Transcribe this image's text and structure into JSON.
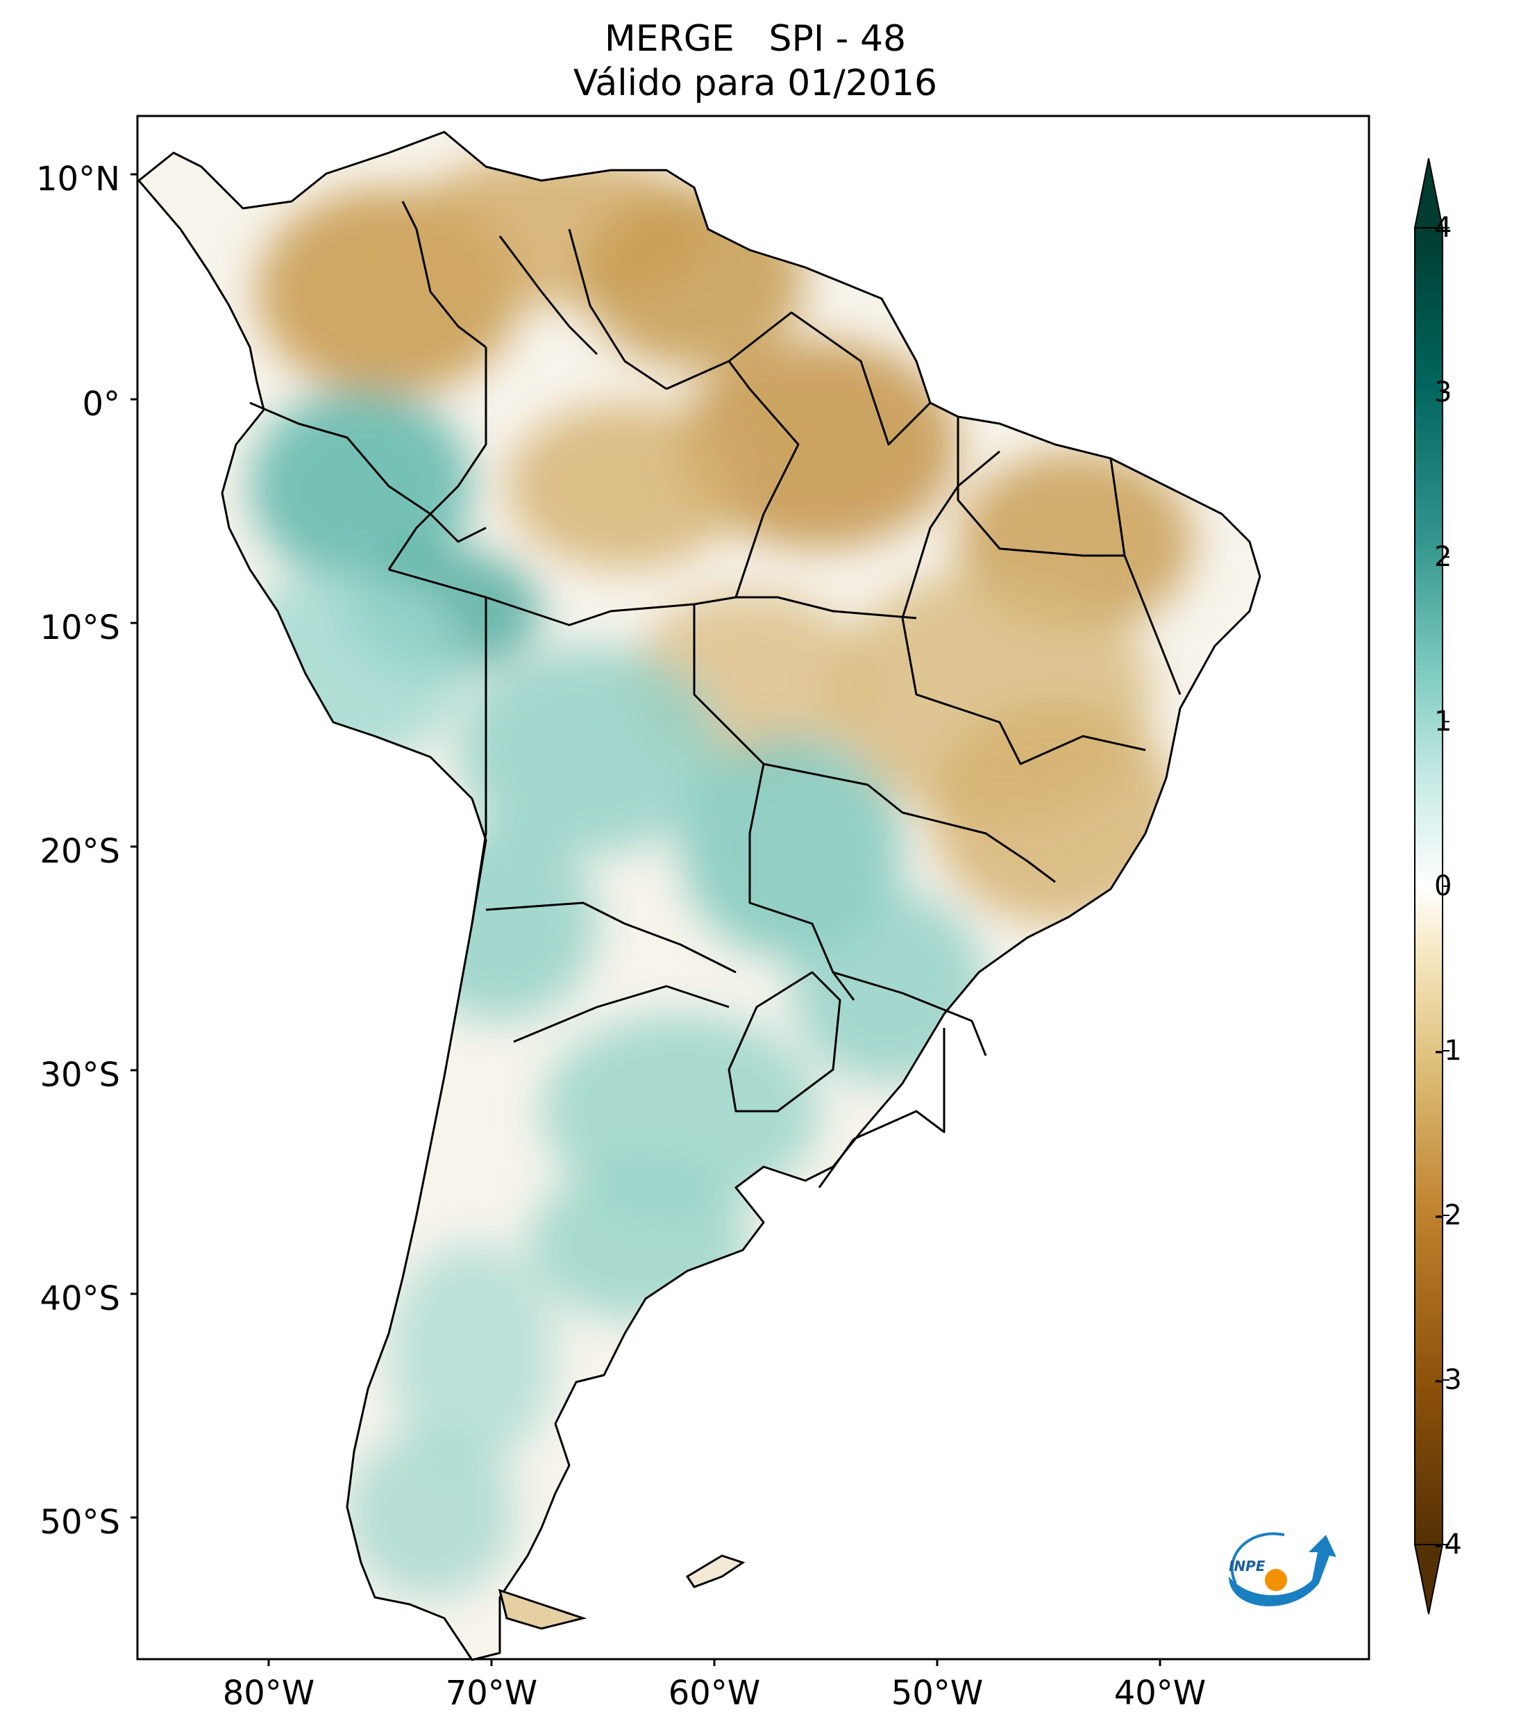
{
  "title": {
    "line1": "MERGE   SPI - 48",
    "line2": "Válido para 01/2016"
  },
  "axes": {
    "lat_labels": [
      "10°N",
      "0°",
      "10°S",
      "20°S",
      "30°S",
      "40°S",
      "50°S"
    ],
    "lon_labels": [
      "80°W",
      "70°W",
      "60°W",
      "50°W",
      "40°W"
    ]
  },
  "colorbar": {
    "ticks": [
      "4",
      "3",
      "2",
      "1",
      "0",
      "-1",
      "-2",
      "-3",
      "-4"
    ],
    "min": -4,
    "max": 4,
    "colors": [
      "#543005",
      "#8c510a",
      "#bf812d",
      "#dfc27d",
      "#f6e8c3",
      "#ffffff",
      "#c7eae5",
      "#80cdc1",
      "#35978f",
      "#01665e",
      "#003c30"
    ]
  },
  "logo": {
    "text": "INPE"
  }
}
